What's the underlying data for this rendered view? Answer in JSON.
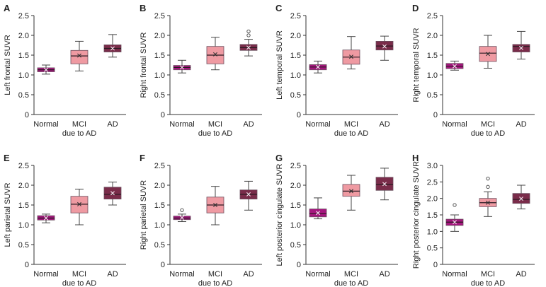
{
  "figure": {
    "colors": {
      "normal": "#a5167e",
      "mci": "#ef9aa2",
      "ad": "#7a2c4a",
      "axis": "#333333",
      "whisker": "#444444"
    }
  },
  "chart_data": [
    {
      "type": "box",
      "panel_letter": "A",
      "ylabel": "Left frontal SUVR",
      "categories": [
        "Normal",
        "MCI\ndue to AD",
        "AD"
      ],
      "ylim": [
        0,
        2.5
      ],
      "yticks": [
        "0",
        "0.5",
        "1.0",
        "1.5",
        "2.0",
        "2.5"
      ],
      "series": [
        {
          "name": "Normal",
          "min": 1.02,
          "q1": 1.08,
          "median": 1.13,
          "q3": 1.18,
          "max": 1.25,
          "mean": 1.13,
          "outliers": []
        },
        {
          "name": "MCI due to AD",
          "min": 1.1,
          "q1": 1.28,
          "median": 1.48,
          "q3": 1.62,
          "max": 1.85,
          "mean": 1.49,
          "outliers": []
        },
        {
          "name": "AD",
          "min": 1.45,
          "q1": 1.58,
          "median": 1.67,
          "q3": 1.76,
          "max": 2.02,
          "mean": 1.67,
          "outliers": []
        }
      ]
    },
    {
      "type": "box",
      "panel_letter": "B",
      "ylabel": "Right frontal SUVR",
      "categories": [
        "Normal",
        "MCI\ndue to AD",
        "AD"
      ],
      "ylim": [
        0,
        2.5
      ],
      "yticks": [
        "0",
        "0.5",
        "1.0",
        "1.5",
        "2.0",
        "2.5"
      ],
      "series": [
        {
          "name": "Normal",
          "min": 1.05,
          "q1": 1.13,
          "median": 1.19,
          "q3": 1.24,
          "max": 1.37,
          "mean": 1.19,
          "outliers": []
        },
        {
          "name": "MCI due to AD",
          "min": 1.13,
          "q1": 1.28,
          "median": 1.5,
          "q3": 1.72,
          "max": 1.95,
          "mean": 1.52,
          "outliers": []
        },
        {
          "name": "AD",
          "min": 1.48,
          "q1": 1.62,
          "median": 1.69,
          "q3": 1.77,
          "max": 1.9,
          "mean": 1.69,
          "outliers": [
            2.0,
            2.1
          ]
        }
      ]
    },
    {
      "type": "box",
      "panel_letter": "C",
      "ylabel": "Left temporal SUVR",
      "categories": [
        "Normal",
        "MCI\ndue to AD",
        "AD"
      ],
      "ylim": [
        0,
        2.5
      ],
      "yticks": [
        "0",
        "0.5",
        "1.0",
        "1.5",
        "2.0",
        "2.5"
      ],
      "series": [
        {
          "name": "Normal",
          "min": 1.05,
          "q1": 1.13,
          "median": 1.2,
          "q3": 1.26,
          "max": 1.35,
          "mean": 1.2,
          "outliers": []
        },
        {
          "name": "MCI due to AD",
          "min": 1.15,
          "q1": 1.27,
          "median": 1.45,
          "q3": 1.63,
          "max": 1.97,
          "mean": 1.46,
          "outliers": []
        },
        {
          "name": "AD",
          "min": 1.37,
          "q1": 1.63,
          "median": 1.73,
          "q3": 1.85,
          "max": 1.98,
          "mean": 1.72,
          "outliers": []
        }
      ]
    },
    {
      "type": "box",
      "panel_letter": "D",
      "ylabel": "Right temporal SUVR",
      "categories": [
        "Normal",
        "MCI\ndue to AD",
        "AD"
      ],
      "ylim": [
        0,
        2.5
      ],
      "yticks": [
        "0",
        "0.5",
        "1.0",
        "1.5",
        "2.0",
        "2.5"
      ],
      "series": [
        {
          "name": "Normal",
          "min": 1.12,
          "q1": 1.16,
          "median": 1.22,
          "q3": 1.29,
          "max": 1.35,
          "mean": 1.22,
          "outliers": []
        },
        {
          "name": "MCI due to AD",
          "min": 1.17,
          "q1": 1.34,
          "median": 1.55,
          "q3": 1.72,
          "max": 2.0,
          "mean": 1.53,
          "outliers": []
        },
        {
          "name": "AD",
          "min": 1.4,
          "q1": 1.58,
          "median": 1.72,
          "q3": 1.77,
          "max": 2.1,
          "mean": 1.68,
          "outliers": []
        }
      ]
    },
    {
      "type": "box",
      "panel_letter": "E",
      "ylabel": "Left parietal SUVR",
      "categories": [
        "Normal",
        "MCI\ndue to AD",
        "AD"
      ],
      "ylim": [
        0,
        2.5
      ],
      "yticks": [
        "0",
        "0.5",
        "1.0",
        "1.5",
        "2.0",
        "2.5"
      ],
      "series": [
        {
          "name": "Normal",
          "min": 1.05,
          "q1": 1.12,
          "median": 1.17,
          "q3": 1.23,
          "max": 1.27,
          "mean": 1.17,
          "outliers": []
        },
        {
          "name": "MCI due to AD",
          "min": 1.0,
          "q1": 1.3,
          "median": 1.52,
          "q3": 1.72,
          "max": 1.9,
          "mean": 1.52,
          "outliers": []
        },
        {
          "name": "AD",
          "min": 1.5,
          "q1": 1.65,
          "median": 1.77,
          "q3": 1.95,
          "max": 2.08,
          "mean": 1.8,
          "outliers": []
        }
      ]
    },
    {
      "type": "box",
      "panel_letter": "F",
      "ylabel": "Right parietal SUVR",
      "categories": [
        "Normal",
        "MCI\ndue to AD",
        "AD"
      ],
      "ylim": [
        0,
        2.5
      ],
      "yticks": [
        "0",
        "0.5",
        "1.0",
        "1.5",
        "2.0",
        "2.5"
      ],
      "series": [
        {
          "name": "Normal",
          "min": 1.08,
          "q1": 1.13,
          "median": 1.17,
          "q3": 1.22,
          "max": 1.27,
          "mean": 1.18,
          "outliers": [
            1.37
          ]
        },
        {
          "name": "MCI due to AD",
          "min": 1.0,
          "q1": 1.3,
          "median": 1.5,
          "q3": 1.7,
          "max": 1.97,
          "mean": 1.5,
          "outliers": []
        },
        {
          "name": "AD",
          "min": 1.37,
          "q1": 1.65,
          "median": 1.77,
          "q3": 1.88,
          "max": 2.1,
          "mean": 1.77,
          "outliers": []
        }
      ]
    },
    {
      "type": "box",
      "panel_letter": "G",
      "ylabel": "Left posterior cingulate SUVR",
      "categories": [
        "Normal",
        "MCI\ndue to AD",
        "AD"
      ],
      "ylim": [
        0,
        2.5
      ],
      "yticks": [
        "0",
        "0.5",
        "1.0",
        "1.5",
        "2.0",
        "2.5"
      ],
      "series": [
        {
          "name": "Normal",
          "min": 1.15,
          "q1": 1.2,
          "median": 1.28,
          "q3": 1.4,
          "max": 1.68,
          "mean": 1.3,
          "outliers": []
        },
        {
          "name": "MCI due to AD",
          "min": 1.37,
          "q1": 1.72,
          "median": 1.85,
          "q3": 2.02,
          "max": 2.25,
          "mean": 1.85,
          "outliers": []
        },
        {
          "name": "AD",
          "min": 1.63,
          "q1": 1.87,
          "median": 2.02,
          "q3": 2.2,
          "max": 2.43,
          "mean": 2.03,
          "outliers": []
        }
      ]
    },
    {
      "type": "box",
      "panel_letter": "H",
      "ylabel": "Right posterior cingulate SUVR",
      "categories": [
        "Normal",
        "MCI\ndue to AD",
        "AD"
      ],
      "ylim": [
        0,
        3.0
      ],
      "yticks": [
        "0",
        "0.5",
        "1.0",
        "1.5",
        "2.0",
        "2.5",
        "3.0"
      ],
      "series": [
        {
          "name": "Normal",
          "min": 1.0,
          "q1": 1.18,
          "median": 1.28,
          "q3": 1.37,
          "max": 1.5,
          "mean": 1.28,
          "outliers": [
            1.8
          ]
        },
        {
          "name": "MCI due to AD",
          "min": 1.45,
          "q1": 1.75,
          "median": 1.87,
          "q3": 2.0,
          "max": 2.2,
          "mean": 1.87,
          "outliers": [
            2.35,
            2.6
          ]
        },
        {
          "name": "AD",
          "min": 1.68,
          "q1": 1.85,
          "median": 1.97,
          "q3": 2.15,
          "max": 2.4,
          "mean": 1.99,
          "outliers": []
        }
      ]
    }
  ]
}
